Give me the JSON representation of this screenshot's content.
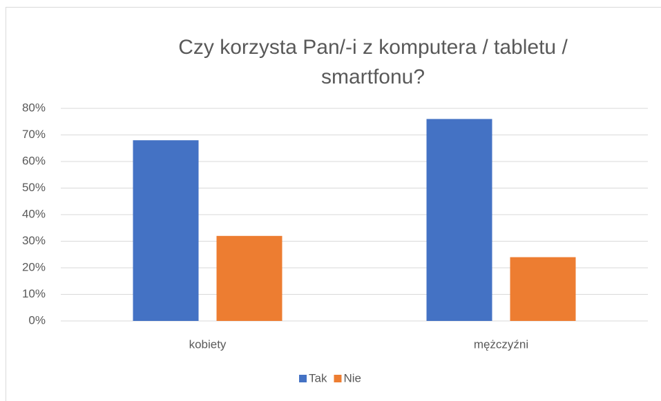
{
  "chart_data": {
    "type": "bar",
    "title": "Czy korzysta Pan/-i z komputera / tabletu / smartfonu?",
    "categories": [
      "kobiety",
      "mężczyźni"
    ],
    "series": [
      {
        "name": "Tak",
        "color": "#4472c4",
        "values": [
          68,
          76
        ]
      },
      {
        "name": "Nie",
        "color": "#ed7d31",
        "values": [
          32,
          24
        ]
      }
    ],
    "ylim": [
      0,
      80
    ],
    "yticks": [
      {
        "value": 0,
        "label": "0%"
      },
      {
        "value": 10,
        "label": "10%"
      },
      {
        "value": 20,
        "label": "20%"
      },
      {
        "value": 30,
        "label": "30%"
      },
      {
        "value": 40,
        "label": "40%"
      },
      {
        "value": 50,
        "label": "50%"
      },
      {
        "value": 60,
        "label": "60%"
      },
      {
        "value": 70,
        "label": "70%"
      },
      {
        "value": 80,
        "label": "80%"
      }
    ],
    "grid": true,
    "legend": "bottom"
  }
}
